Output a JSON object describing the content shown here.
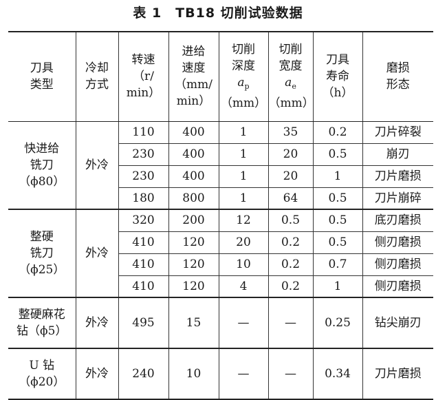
{
  "title": "表 1　TB18 切削试验数据",
  "headers": {
    "tool_type": [
      "刀具",
      "类型"
    ],
    "cooling": [
      "冷却",
      "方式"
    ],
    "speed": [
      "转速",
      "（r/",
      "min）"
    ],
    "feed": [
      "进给",
      "速度",
      "（mm/",
      "min）"
    ],
    "depth": [
      "切削",
      "深度",
      "a",
      "p",
      "（mm）"
    ],
    "width": [
      "切削",
      "宽度",
      "a",
      "e",
      "（mm）"
    ],
    "life": [
      "刀具",
      "寿命",
      "（h）"
    ],
    "wear": [
      "磨损",
      "形态"
    ]
  },
  "groups": [
    {
      "tool": [
        "快进给",
        "铣刀",
        "（ϕ80）"
      ],
      "cooling": "外冷",
      "rows": [
        [
          "110",
          "400",
          "1",
          "35",
          "0.2",
          "刀片碎裂"
        ],
        [
          "230",
          "400",
          "1",
          "20",
          "0.5",
          "崩刃"
        ],
        [
          "230",
          "400",
          "1",
          "20",
          "1",
          "刀片磨损"
        ],
        [
          "180",
          "800",
          "1",
          "64",
          "0.5",
          "刀片崩碎"
        ]
      ]
    },
    {
      "tool": [
        "整硬",
        "铣刀",
        "（ϕ25）"
      ],
      "cooling": "外冷",
      "rows": [
        [
          "320",
          "200",
          "12",
          "0.5",
          "0.5",
          "底刃磨损"
        ],
        [
          "410",
          "120",
          "20",
          "0.2",
          "0.5",
          "侧刃磨损"
        ],
        [
          "410",
          "120",
          "10",
          "0.2",
          "0.7",
          "侧刃磨损"
        ],
        [
          "410",
          "120",
          "4",
          "0.2",
          "1",
          "侧刃磨损"
        ]
      ]
    },
    {
      "tool": [
        "整硬麻花",
        "钻（ϕ5）"
      ],
      "cooling": "外冷",
      "rows": [
        [
          "495",
          "15",
          "—",
          "—",
          "0.25",
          "钻尖崩刃"
        ]
      ]
    },
    {
      "tool": [
        "U 钻",
        "（ϕ20）"
      ],
      "cooling": "外冷",
      "rows": [
        [
          "240",
          "10",
          "—",
          "—",
          "0.34",
          "刀片磨损"
        ]
      ]
    }
  ]
}
